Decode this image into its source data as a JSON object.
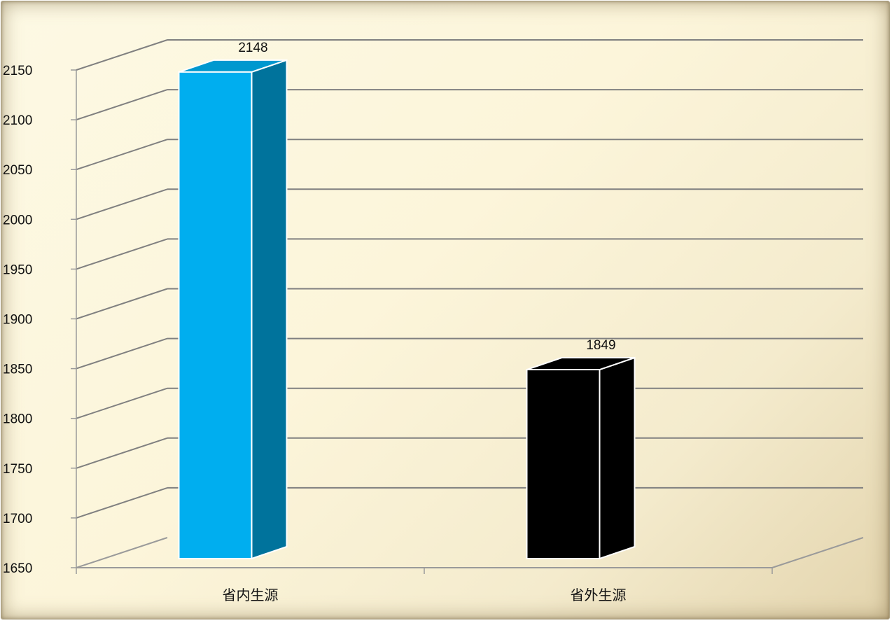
{
  "chart_data": {
    "type": "bar",
    "categories": [
      "省内生源",
      "省外生源"
    ],
    "values": [
      2148,
      1849
    ],
    "ylim": [
      1650,
      2150
    ],
    "yticks": [
      1650,
      1700,
      1750,
      1800,
      1850,
      1900,
      1950,
      2000,
      2050,
      2100,
      2150
    ],
    "grid": true,
    "legend": "none",
    "colors": {
      "bars": [
        {
          "front": "#00AEEF",
          "side": "#00739C",
          "top": "#0098CF"
        },
        {
          "front": "#000000",
          "side": "#000000",
          "top": "#000000"
        }
      ],
      "bar_outline": "#ffffff",
      "grid": "#808080",
      "axis": "#9a9a9a"
    }
  }
}
